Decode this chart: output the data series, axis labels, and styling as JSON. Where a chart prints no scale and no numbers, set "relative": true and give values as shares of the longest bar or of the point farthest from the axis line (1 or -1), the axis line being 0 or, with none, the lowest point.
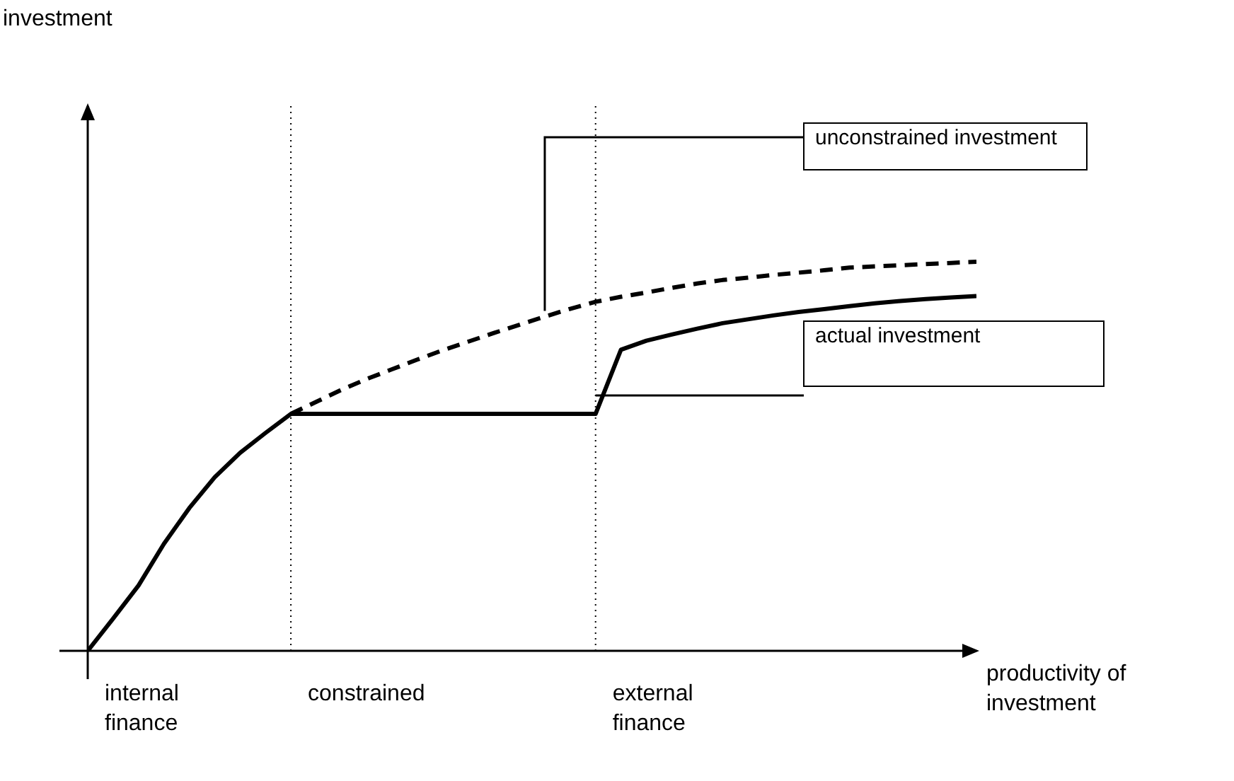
{
  "chart_data": {
    "type": "line",
    "relative": true,
    "xlabel": "productivity of investment",
    "marker": "none",
    "categories": [
      null,
      null,
      null,
      null,
      null,
      null,
      null,
      null,
      null,
      null,
      null,
      null,
      null,
      null,
      null,
      null,
      null,
      null,
      null,
      null,
      null,
      null,
      null,
      null,
      null,
      null,
      null,
      null,
      null,
      null,
      null,
      null,
      null,
      null,
      null,
      null
    ],
    "series": [
      {
        "name": "unconstrained investment",
        "color": "#000000",
        "line_style": "dashed",
        "values": [
          null,
          null,
          null,
          null,
          null,
          null,
          null,
          null,
          0.609,
          0.64,
          0.671,
          0.699,
          0.724,
          0.749,
          0.773,
          0.795,
          0.817,
          0.838,
          0.859,
          0.879,
          0.897,
          0.91,
          0.921,
          0.933,
          0.944,
          0.953,
          0.959,
          0.966,
          0.972,
          0.978,
          0.985,
          0.988,
          0.991,
          0.994,
          0.997,
          1
        ]
      },
      {
        "name": "actual investment",
        "color": "#000000",
        "line_style": "solid",
        "values": [
          0,
          0.083,
          0.168,
          0.275,
          0.367,
          0.446,
          0.509,
          0.56,
          0.609,
          0.609,
          0.609,
          0.609,
          0.609,
          0.609,
          0.609,
          0.609,
          0.609,
          0.609,
          0.609,
          0.609,
          0.609,
          0.774,
          0.797,
          0.813,
          0.828,
          0.842,
          0.852,
          0.862,
          0.871,
          0.878,
          0.886,
          0.893,
          0.899,
          0.904,
          0.908,
          0.912
        ]
      }
    ],
    "annotations": [
      "internal finance",
      "constrained",
      "external finance",
      "investment"
    ]
  }
}
